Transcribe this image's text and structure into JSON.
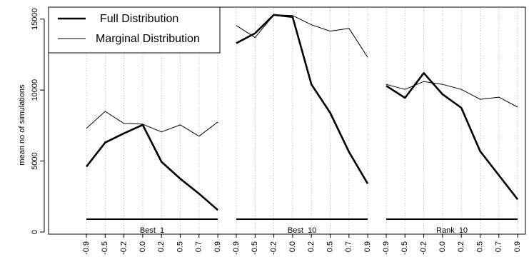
{
  "chart_data": {
    "type": "line",
    "title": "",
    "xlabel": "",
    "ylabel": "mean no of simulations",
    "ylim": [
      0,
      16000
    ],
    "y_ticks": [
      "0",
      "5000",
      "10000",
      "15000"
    ],
    "x_tick_labels": [
      "-0.9",
      "-0.5",
      "-0.2",
      "0.0",
      "0.2",
      "0.5",
      "0.7",
      "0.9"
    ],
    "grid": "vertical dotted",
    "legend_position": "top-left",
    "legend": [
      "Full Distribution",
      "Marginal Distribution"
    ],
    "panels": [
      {
        "label": "Best_1",
        "series": [
          {
            "name": "Full Distribution",
            "style": "thick",
            "values": [
              4600,
              6300,
              6950,
              7550,
              4950,
              3750,
              2700,
              1550
            ]
          },
          {
            "name": "Marginal Distribution",
            "style": "thin",
            "values": [
              7300,
              8500,
              7650,
              7600,
              7050,
              7550,
              6750,
              7750
            ]
          }
        ]
      },
      {
        "label": "Best_10",
        "series": [
          {
            "name": "Full Distribution",
            "style": "thick",
            "values": [
              13300,
              14000,
              15300,
              15150,
              10400,
              8400,
              5650,
              3400
            ]
          },
          {
            "name": "Marginal Distribution",
            "style": "thin",
            "values": [
              14550,
              13700,
              15300,
              15250,
              14600,
              14150,
              14350,
              12300
            ]
          }
        ]
      },
      {
        "label": "Rank_10",
        "series": [
          {
            "name": "Full Distribution",
            "style": "thick",
            "values": [
              10300,
              9450,
              11200,
              9700,
              8750,
              5700,
              4000,
              2300
            ]
          },
          {
            "name": "Marginal Distribution",
            "style": "thin",
            "values": [
              10400,
              10050,
              10600,
              10400,
              10050,
              9350,
              9500,
              8800
            ]
          }
        ]
      }
    ],
    "colors": {
      "line": "#000000",
      "grid": "#bbbbbb"
    }
  }
}
